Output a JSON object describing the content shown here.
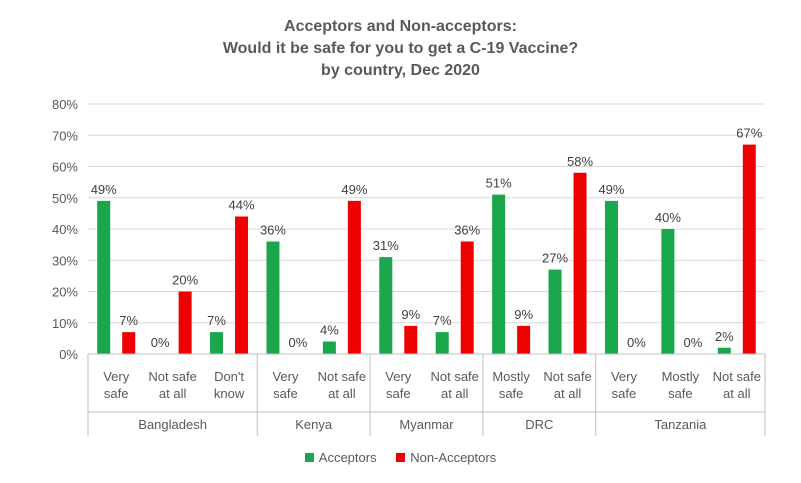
{
  "title_lines": [
    "Acceptors and Non-acceptors:",
    "Would it be safe for you to get a C-19 Vaccine?",
    "by country, Dec 2020"
  ],
  "chart_data": {
    "type": "bar",
    "title": "Acceptors and Non-acceptors: Would it be safe for you to get a C-19 Vaccine? by country, Dec 2020",
    "ylim": [
      0,
      80
    ],
    "yticks": [
      "0%",
      "10%",
      "20%",
      "30%",
      "40%",
      "50%",
      "60%",
      "70%",
      "80%"
    ],
    "grid": true,
    "legend_position": "bottom",
    "categories": [
      {
        "label": [
          "Very",
          "safe"
        ],
        "group": "Bangladesh"
      },
      {
        "label": [
          "Not safe",
          "at all"
        ],
        "group": "Bangladesh"
      },
      {
        "label": [
          "Don't",
          "know"
        ],
        "group": "Bangladesh"
      },
      {
        "label": [
          "Very",
          "safe"
        ],
        "group": "Kenya"
      },
      {
        "label": [
          "Not safe",
          "at all"
        ],
        "group": "Kenya"
      },
      {
        "label": [
          "Very",
          "safe"
        ],
        "group": "Myanmar"
      },
      {
        "label": [
          "Not safe",
          "at all"
        ],
        "group": "Myanmar"
      },
      {
        "label": [
          "Mostly",
          "safe"
        ],
        "group": "DRC"
      },
      {
        "label": [
          "Not safe",
          "at all"
        ],
        "group": "DRC"
      },
      {
        "label": [
          "Very",
          "safe"
        ],
        "group": "Tanzania"
      },
      {
        "label": [
          "Mostly",
          "safe"
        ],
        "group": "Tanzania"
      },
      {
        "label": [
          "Not safe",
          "at all"
        ],
        "group": "Tanzania"
      }
    ],
    "groups": [
      "Bangladesh",
      "Kenya",
      "Myanmar",
      "DRC",
      "Tanzania"
    ],
    "series": [
      {
        "name": "Acceptors",
        "color": "#1aa64a",
        "values": [
          49,
          0,
          7,
          36,
          4,
          31,
          7,
          51,
          27,
          49,
          40,
          2
        ]
      },
      {
        "name": "Non-Acceptors",
        "color": "#ee0000",
        "values": [
          7,
          20,
          44,
          0,
          49,
          9,
          36,
          9,
          58,
          0,
          0,
          67
        ]
      }
    ],
    "value_labels": [
      [
        "49%",
        "0%",
        "7%",
        "36%",
        "4%",
        "31%",
        "7%",
        "51%",
        "27%",
        "49%",
        "40%",
        "2%"
      ],
      [
        "7%",
        "20%",
        "44%",
        "0%",
        "49%",
        "9%",
        "36%",
        "9%",
        "58%",
        "0%",
        "0%",
        "67%"
      ]
    ]
  }
}
